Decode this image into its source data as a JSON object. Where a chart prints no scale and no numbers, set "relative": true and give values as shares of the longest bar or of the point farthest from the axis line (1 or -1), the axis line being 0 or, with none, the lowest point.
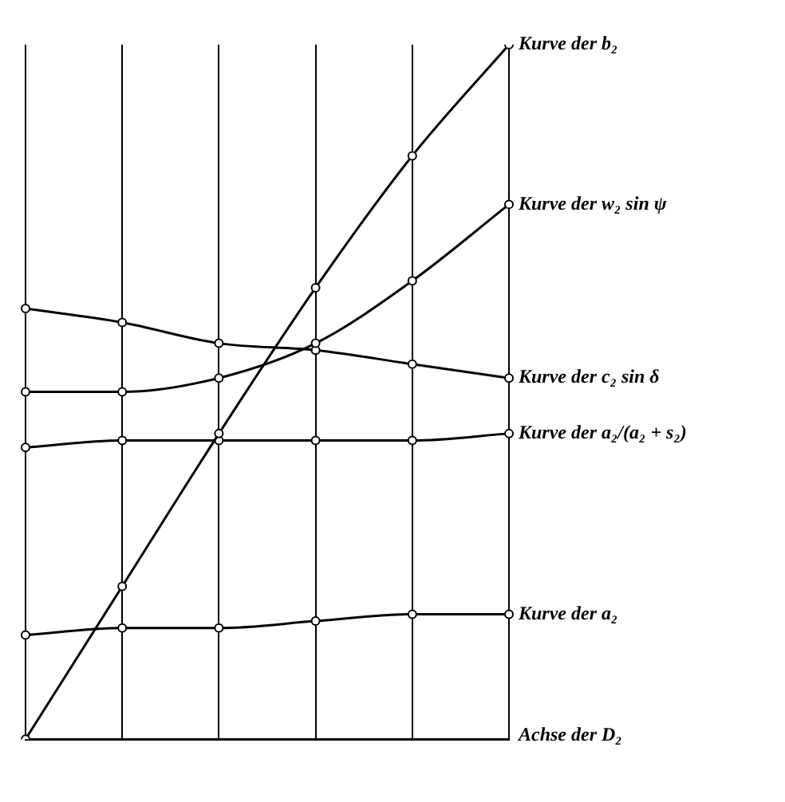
{
  "chart_data": {
    "type": "line",
    "relative": true,
    "xlabel": "Achse der D₂",
    "categories": [
      null,
      null,
      null,
      null,
      null,
      null
    ],
    "grid": "x",
    "legend": false,
    "marker": "circle",
    "line_style": "solid",
    "series": [
      {
        "name": "Kurve der b₂",
        "color": "#000000",
        "values": [
          0,
          0.22,
          0.44,
          0.65,
          0.84,
          1
        ]
      },
      {
        "name": "Kurve der w₂ sin ψ",
        "color": "#000000",
        "values": [
          0.5,
          0.5,
          0.52,
          0.57,
          0.66,
          0.77
        ]
      },
      {
        "name": "Kurve der c₂ sin δ",
        "color": "#000000",
        "values": [
          0.62,
          0.6,
          0.57,
          0.56,
          0.54,
          0.52
        ]
      },
      {
        "name": "Kurve der a₂/(a₂ + s₂)",
        "color": "#000000",
        "values": [
          0.42,
          0.43,
          0.43,
          0.43,
          0.43,
          0.44
        ]
      },
      {
        "name": "Kurve der a₂",
        "color": "#000000",
        "values": [
          0.15,
          0.16,
          0.16,
          0.17,
          0.18,
          0.18
        ]
      }
    ]
  }
}
